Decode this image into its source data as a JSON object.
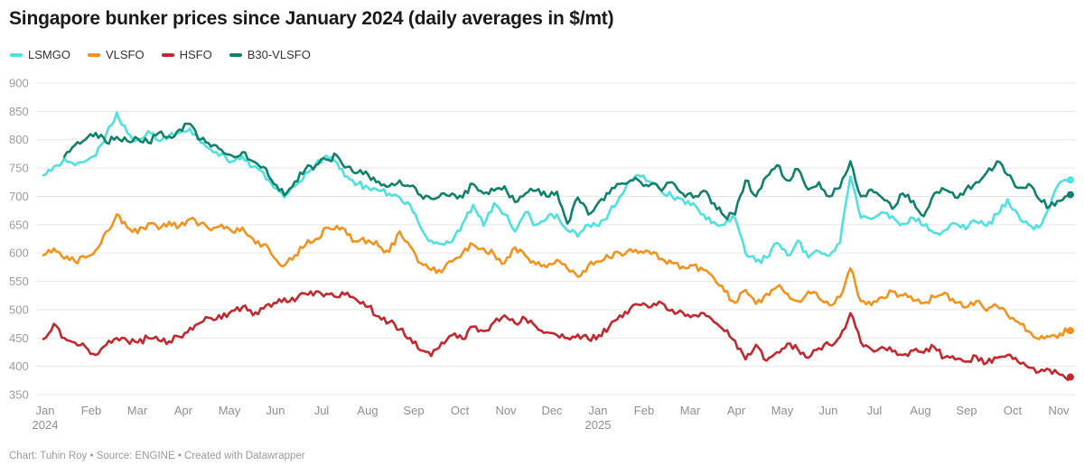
{
  "title": "Singapore bunker prices since January 2024 (daily averages in $/mt)",
  "footer": "Chart: Tuhin Roy • Source: ENGINE • Created with Datawrapper",
  "colors": {
    "background": "#ffffff",
    "gridline": "#e7e7e7",
    "y_tick_label": "#9c9c9c",
    "x_tick_label": "#8f8f8f",
    "title_text": "#1a1a1a",
    "footer_text": "#9b9b9b",
    "legend_text": "#333333"
  },
  "chart_data": {
    "type": "line",
    "title": "Singapore bunker prices since January 2024 (daily averages in $/mt)",
    "ylabel": "",
    "xlabel": "",
    "unit": "$/mt",
    "ylim": [
      350,
      900
    ],
    "y_ticks": [
      350,
      400,
      450,
      500,
      550,
      600,
      650,
      700,
      750,
      800,
      850,
      900
    ],
    "grid": true,
    "legend_position": "top-left",
    "x_start": "2024-01",
    "x_end": "2025-11",
    "sampling": "approximately weekly values read from a daily-average line chart",
    "x_month_labels": [
      {
        "label": "Jan",
        "year": "2024"
      },
      {
        "label": "Feb"
      },
      {
        "label": "Mar"
      },
      {
        "label": "Apr"
      },
      {
        "label": "May"
      },
      {
        "label": "Jun"
      },
      {
        "label": "Jul"
      },
      {
        "label": "Aug"
      },
      {
        "label": "Sep"
      },
      {
        "label": "Oct"
      },
      {
        "label": "Nov"
      },
      {
        "label": "Dec"
      },
      {
        "label": "Jan",
        "year": "2025"
      },
      {
        "label": "Feb"
      },
      {
        "label": "Mar"
      },
      {
        "label": "Apr"
      },
      {
        "label": "May"
      },
      {
        "label": "Jun"
      },
      {
        "label": "Jul"
      },
      {
        "label": "Aug"
      },
      {
        "label": "Sep"
      },
      {
        "label": "Oct"
      },
      {
        "label": "Nov"
      }
    ],
    "series": [
      {
        "name": "LSMGO",
        "color": "#4ee1de",
        "values": [
          737,
          752,
          768,
          755,
          762,
          772,
          810,
          848,
          812,
          800,
          815,
          798,
          808,
          812,
          820,
          795,
          782,
          775,
          762,
          770,
          752,
          742,
          715,
          698,
          718,
          742,
          758,
          772,
          760,
          735,
          722,
          715,
          710,
          705,
          698,
          685,
          645,
          622,
          616,
          620,
          652,
          685,
          648,
          688,
          668,
          638,
          672,
          650,
          660,
          668,
          640,
          629,
          650,
          648,
          672,
          700,
          728,
          735,
          725,
          708,
          700,
          694,
          688,
          668,
          655,
          650,
          662,
          600,
          585,
          592,
          618,
          596,
          622,
          592,
          603,
          595,
          618,
          735,
          662,
          660,
          672,
          665,
          652,
          662,
          648,
          635,
          640,
          652,
          642,
          655,
          648,
          668,
          695,
          668,
          650,
          645,
          680,
          725,
          729
        ]
      },
      {
        "name": "VLSFO",
        "color": "#f2931d",
        "values": [
          596,
          608,
          590,
          585,
          592,
          605,
          638,
          668,
          645,
          635,
          652,
          642,
          655,
          648,
          660,
          652,
          640,
          650,
          638,
          645,
          625,
          615,
          592,
          578,
          596,
          614,
          625,
          645,
          648,
          632,
          620,
          622,
          612,
          602,
          638,
          612,
          582,
          570,
          566,
          585,
          600,
          615,
          608,
          598,
          582,
          610,
          595,
          580,
          575,
          588,
          572,
          558,
          578,
          585,
          592,
          600,
          607,
          603,
          598,
          590,
          582,
          576,
          578,
          570,
          555,
          532,
          512,
          535,
          510,
          528,
          540,
          528,
          515,
          532,
          520,
          508,
          522,
          573,
          515,
          508,
          522,
          532,
          525,
          516,
          512,
          522,
          530,
          512,
          504,
          515,
          498,
          506,
          490,
          478,
          462,
          448,
          452,
          458,
          463
        ]
      },
      {
        "name": "HSFO",
        "color": "#c4272e",
        "values": [
          448,
          475,
          450,
          442,
          435,
          420,
          438,
          450,
          445,
          442,
          450,
          446,
          444,
          452,
          468,
          477,
          485,
          484,
          498,
          505,
          490,
          502,
          512,
          520,
          515,
          528,
          532,
          528,
          522,
          530,
          515,
          505,
          488,
          478,
          465,
          450,
          428,
          418,
          442,
          455,
          448,
          470,
          462,
          478,
          490,
          476,
          484,
          470,
          460,
          455,
          450,
          456,
          448,
          455,
          470,
          490,
          502,
          508,
          505,
          512,
          500,
          495,
          490,
          494,
          478,
          462,
          445,
          412,
          438,
          410,
          425,
          440,
          430,
          415,
          432,
          438,
          452,
          494,
          442,
          430,
          434,
          426,
          420,
          428,
          424,
          434,
          416,
          412,
          408,
          418,
          406,
          415,
          420,
          408,
          398,
          390,
          394,
          385,
          381
        ]
      },
      {
        "name": "B30-VLSFO",
        "color": "#10816b",
        "values": [
          null,
          null,
          770,
          790,
          800,
          812,
          795,
          805,
          798,
          802,
          795,
          812,
          806,
          818,
          828,
          800,
          788,
          782,
          772,
          778,
          762,
          752,
          722,
          702,
          726,
          748,
          755,
          765,
          772,
          752,
          742,
          738,
          726,
          718,
          728,
          718,
          702,
          696,
          705,
          705,
          698,
          722,
          705,
          710,
          718,
          690,
          705,
          710,
          700,
          708,
          652,
          698,
          668,
          690,
          705,
          722,
          728,
          725,
          722,
          710,
          725,
          705,
          698,
          710,
          688,
          665,
          668,
          728,
          700,
          735,
          755,
          728,
          748,
          712,
          725,
          700,
          715,
          762,
          700,
          712,
          698,
          678,
          705,
          692,
          665,
          705,
          712,
          698,
          712,
          725,
          742,
          762,
          738,
          715,
          722,
          695,
          682,
          692,
          703
        ]
      }
    ]
  }
}
